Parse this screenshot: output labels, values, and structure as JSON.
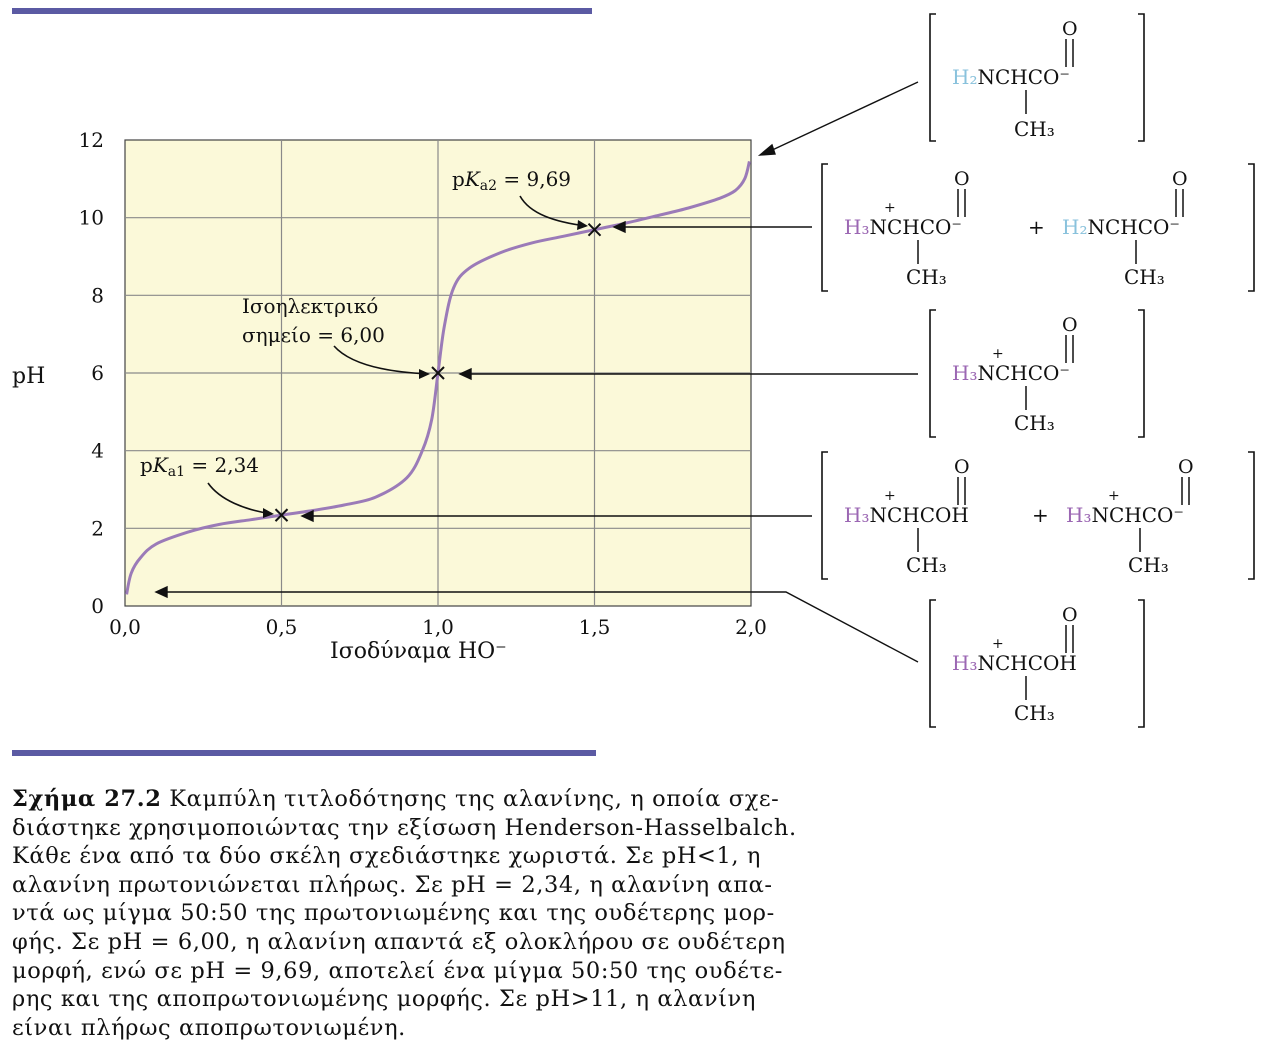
{
  "chart_data": {
    "type": "line",
    "title": "",
    "xlabel": "Ισοδύναμα HO⁻",
    "ylabel": "pH",
    "xlim": [
      0,
      2.0
    ],
    "ylim": [
      0,
      12
    ],
    "xticks": [
      "0,0",
      "0,5",
      "1,0",
      "1,5",
      "2,0"
    ],
    "xtick_values": [
      0,
      0.5,
      1.0,
      1.5,
      2.0
    ],
    "yticks": [
      "0",
      "2",
      "4",
      "6",
      "8",
      "10",
      "12"
    ],
    "ytick_values": [
      0,
      2,
      4,
      6,
      8,
      10,
      12
    ],
    "grid": true,
    "plot_background": "#fbf9d9",
    "curve_color": "#9b7bb8",
    "series": [
      {
        "x": [
          0.005,
          0.02,
          0.05,
          0.1,
          0.2,
          0.3,
          0.4,
          0.5,
          0.6,
          0.7,
          0.8,
          0.9,
          0.95,
          0.98,
          1.0,
          1.02,
          1.05,
          1.1,
          1.2,
          1.3,
          1.4,
          1.5,
          1.6,
          1.7,
          1.8,
          1.9,
          1.95,
          1.98,
          1.995
        ],
        "y": [
          0.3,
          0.85,
          1.25,
          1.6,
          1.9,
          2.1,
          2.22,
          2.34,
          2.46,
          2.6,
          2.8,
          3.3,
          4.0,
          4.8,
          6.0,
          7.2,
          8.2,
          8.7,
          9.1,
          9.35,
          9.52,
          9.69,
          9.86,
          10.05,
          10.25,
          10.5,
          10.7,
          11.0,
          11.45
        ]
      }
    ],
    "annotations": {
      "pka1": {
        "label_pre": "p",
        "label_k": "K",
        "label_sub": "a1",
        "label_post": " = 2,34",
        "x": 0.5,
        "y": 2.34
      },
      "pka2": {
        "label_pre": "p",
        "label_k": "K",
        "label_sub": "a2",
        "label_post": " = 9,69",
        "x": 1.5,
        "y": 9.69
      },
      "pi": {
        "line1": "Ισοηλεκτρικό",
        "line2": "σημείο = 6,00",
        "x": 1.0,
        "y": 6.0
      }
    }
  },
  "structures": {
    "s1": {
      "left": "H₂",
      "body": "NCHCO⁻",
      "charged": false
    },
    "s2": {
      "a_left": "H₃",
      "a_body": "NCHCO⁻",
      "plus": "+",
      "b_left": "H₂",
      "b_body": "NCHCO⁻"
    },
    "s3": {
      "left": "H₃",
      "body": "NCHCO⁻",
      "charged": true
    },
    "s4": {
      "a_left": "H₃",
      "a_body": "NCHCOH",
      "plus": "+",
      "b_left": "H₃",
      "b_body": "NCHCO⁻"
    },
    "s5": {
      "left": "H₃",
      "body": "NCHCOH",
      "charged": true
    },
    "oxygen": "O",
    "methyl": "CH₃",
    "charge": "+",
    "colors": {
      "h3": "#9b67b3",
      "h2": "#89c2dc"
    }
  },
  "caption": {
    "lead": "Σχήμα 27.2",
    "lines": [
      " Καμπύλη τιτλοδότησης της αλανίνης, η οποία σχε-",
      "διάστηκε χρησιμοποιώντας την εξίσωση Henderson-Hasselbalch.",
      "Κάθε ένα από τα δύο σκέλη σχεδιάστηκε χωριστά. Σε pH<1, η",
      "αλανίνη πρωτονιώνεται πλήρως. Σε pH = 2,34, η αλανίνη απα-",
      "ντά ως μίγμα 50:50 της πρωτονιωμένης και της ουδέτερης μορ-",
      "φής. Σε pH = 6,00, η αλανίνη απαντά εξ ολοκλήρου σε ουδέτερη",
      "μορφή, ενώ σε pH = 9,69, αποτελεί ένα μίγμα 50:50 της ουδέτε-",
      "ρης και της αποπρωτονιωμένης μορφής. Σε pH>11, η αλανίνη",
      "είναι πλήρως αποπρωτονιωμένη."
    ]
  }
}
